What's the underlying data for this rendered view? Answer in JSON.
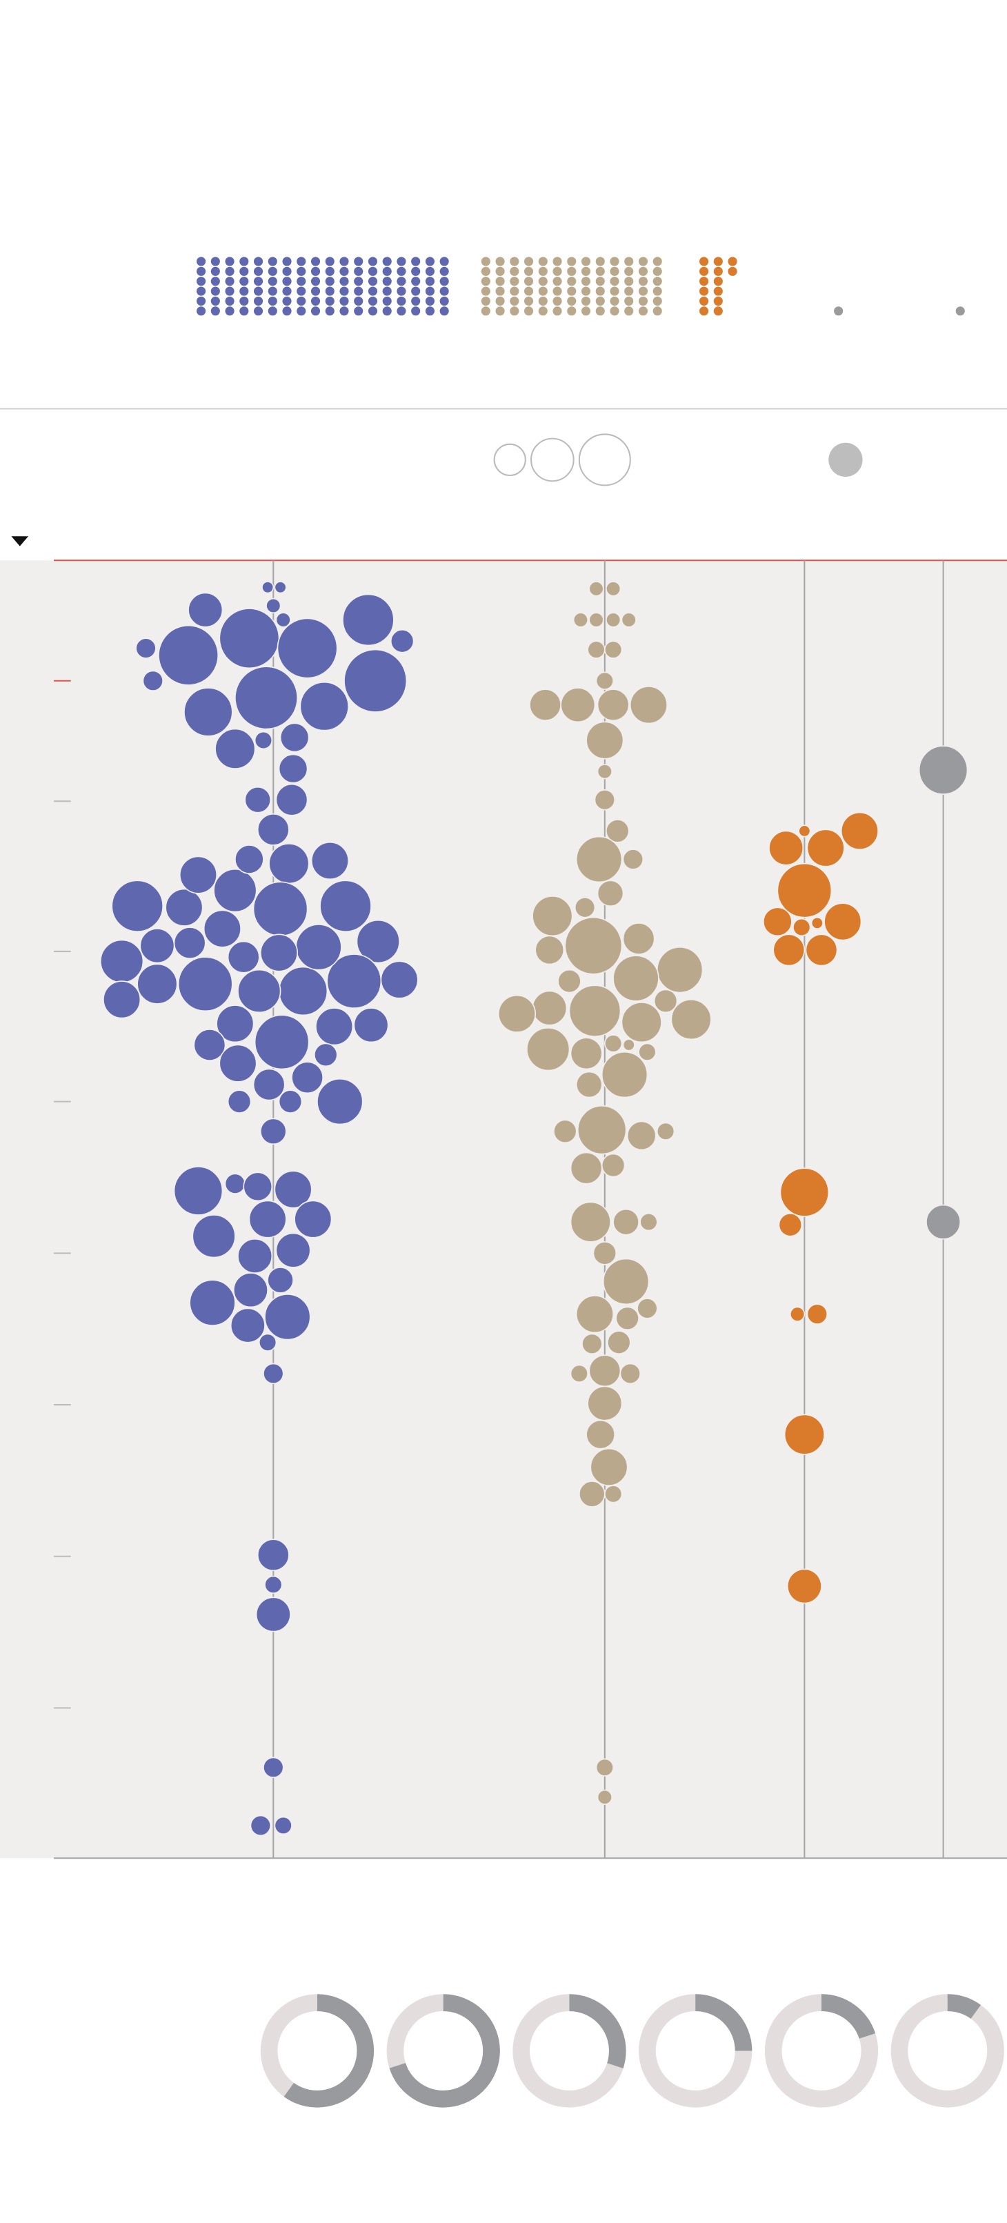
{
  "waffle": {
    "groups": [
      {
        "color": "#5f67ae",
        "count": 108
      },
      {
        "color": "#b9a88b",
        "count": 78
      },
      {
        "color": "#d97b2a",
        "count": 14
      },
      {
        "color": "#999a9d",
        "count": 1
      },
      {
        "color": "#999a9d",
        "count": 1
      }
    ]
  },
  "donuts": {
    "color": "#999a9d",
    "track": "#e3dedd",
    "values": [
      60,
      70,
      30,
      25,
      20,
      10
    ]
  }
}
